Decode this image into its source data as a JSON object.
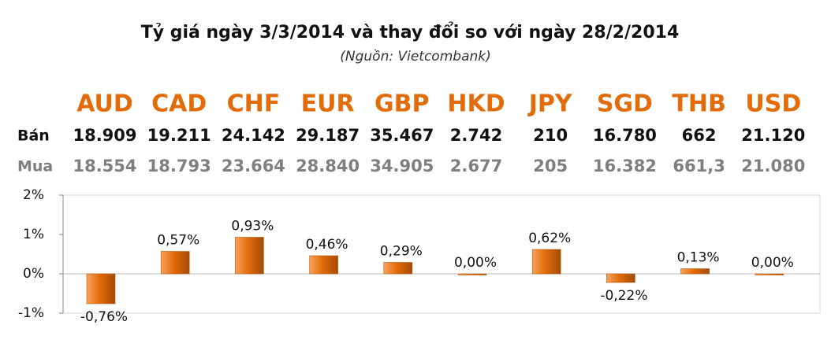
{
  "chart_data": {
    "type": "bar",
    "title": "Tỷ giá ngày 3/3/2014 và thay đổi so với ngày 28/2/2014",
    "subtitle": "(Nguồn: Vietcombank)",
    "categories": [
      "AUD",
      "CAD",
      "CHF",
      "EUR",
      "GBP",
      "HKD",
      "JPY",
      "SGD",
      "THB",
      "USD"
    ],
    "table": [
      {
        "name": "Bán",
        "values": [
          "18.909",
          "19.211",
          "24.142",
          "29.187",
          "35.467",
          "2.742",
          "210",
          "16.780",
          "662",
          "21.120"
        ]
      },
      {
        "name": "Mua",
        "values": [
          "18.554",
          "18.793",
          "23.664",
          "28.840",
          "34.905",
          "2.677",
          "205",
          "16.382",
          "661,3",
          "21.080"
        ]
      }
    ],
    "values": [
      -0.76,
      0.57,
      0.93,
      0.46,
      0.29,
      0.0,
      0.62,
      -0.22,
      0.13,
      0.0
    ],
    "value_labels": [
      "-0,76%",
      "0,57%",
      "0,93%",
      "0,46%",
      "0,29%",
      "0,00%",
      "0,62%",
      "-0,22%",
      "0,13%",
      "0,00%"
    ],
    "color": "#e36c0a",
    "ylim": [
      -1,
      2
    ],
    "yticks": [
      {
        "value": -1,
        "label": "-1%"
      },
      {
        "value": 0,
        "label": "0%"
      },
      {
        "value": 1,
        "label": "1%"
      },
      {
        "value": 2,
        "label": "2%"
      }
    ]
  }
}
